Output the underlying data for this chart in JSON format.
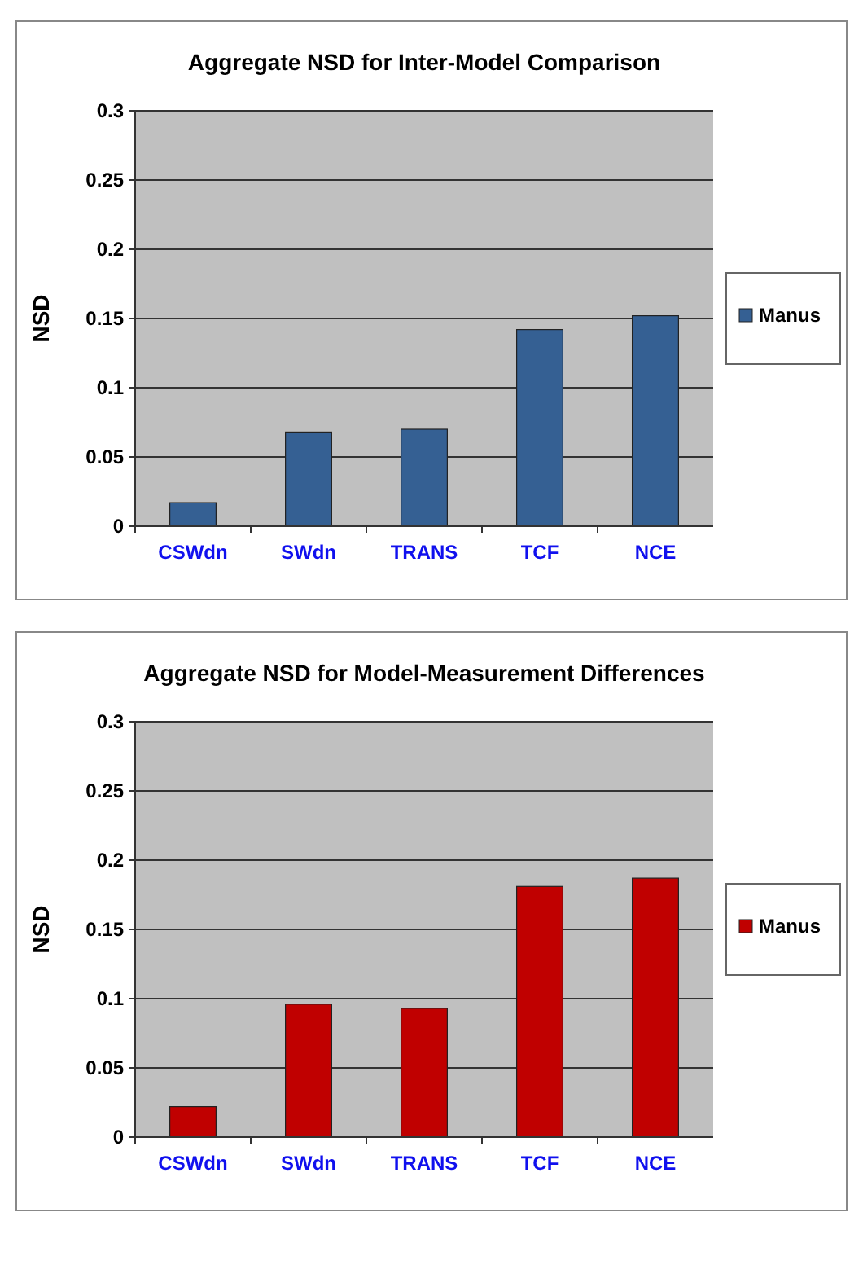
{
  "chart_data": [
    {
      "type": "bar",
      "title": "Aggregate NSD for Inter-Model Comparison",
      "ylabel": "NSD",
      "categories": [
        "CSWdn",
        "SWdn",
        "TRANS",
        "TCF",
        "NCE"
      ],
      "series": [
        {
          "name": "Manus",
          "color": "#356093",
          "values": [
            0.017,
            0.068,
            0.07,
            0.142,
            0.152
          ]
        }
      ],
      "ylim": [
        0,
        0.3
      ],
      "yticks": [
        0,
        0.05,
        0.1,
        0.15,
        0.2,
        0.25,
        0.3
      ],
      "grid": "y",
      "legend": "right"
    },
    {
      "type": "bar",
      "title": "Aggregate NSD for Model-Measurement Differences",
      "ylabel": "NSD",
      "categories": [
        "CSWdn",
        "SWdn",
        "TRANS",
        "TCF",
        "NCE"
      ],
      "series": [
        {
          "name": "Manus",
          "color": "#c00000",
          "values": [
            0.022,
            0.096,
            0.093,
            0.181,
            0.187
          ]
        }
      ],
      "ylim": [
        0,
        0.3
      ],
      "yticks": [
        0,
        0.05,
        0.1,
        0.15,
        0.2,
        0.25,
        0.3
      ],
      "grid": "y",
      "legend": "right"
    }
  ]
}
